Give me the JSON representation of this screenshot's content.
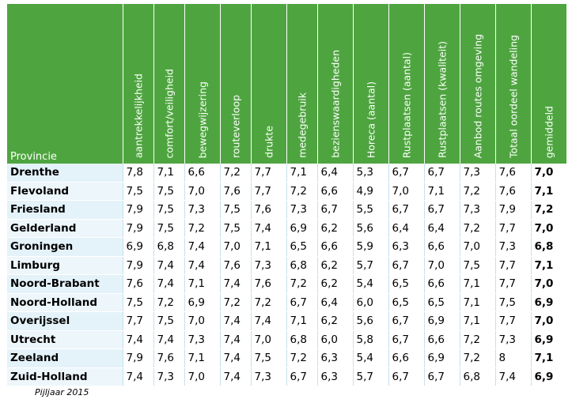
{
  "header": {
    "province": "Provincie",
    "columns": [
      "aantrekkelijkheid",
      "comfort/veiligheid",
      "bewegwijzering",
      "routeverloop",
      "drukte",
      "medegebruik",
      "bezienswaardigheden",
      "Horeca (aantal)",
      "Rustplaatsen (aantal)",
      "Rustplaatsen (kwaliteit)",
      "Aanbod routes omgeving",
      "Totaal oordeel wandeling",
      "gemiddeld"
    ]
  },
  "rows": [
    {
      "name": "Drenthe",
      "values": [
        "7,8",
        "7,1",
        "6,6",
        "7,2",
        "7,7",
        "7,1",
        "6,4",
        "5,3",
        "6,7",
        "6,7",
        "7,3",
        "7,6",
        "7,0"
      ]
    },
    {
      "name": "Flevoland",
      "values": [
        "7,5",
        "7,5",
        "7,0",
        "7,6",
        "7,7",
        "7,2",
        "6,6",
        "4,9",
        "7,0",
        "7,1",
        "7,2",
        "7,6",
        "7,1"
      ]
    },
    {
      "name": "Friesland",
      "values": [
        "7,9",
        "7,5",
        "7,3",
        "7,5",
        "7,6",
        "7,3",
        "6,7",
        "5,5",
        "6,7",
        "6,7",
        "7,3",
        "7,9",
        "7,2"
      ]
    },
    {
      "name": "Gelderland",
      "values": [
        "7,9",
        "7,5",
        "7,2",
        "7,5",
        "7,4",
        "6,9",
        "6,2",
        "5,6",
        "6,4",
        "6,4",
        "7,2",
        "7,7",
        "7,0"
      ]
    },
    {
      "name": "Groningen",
      "values": [
        "6,9",
        "6,8",
        "7,4",
        "7,0",
        "7,1",
        "6,5",
        "6,6",
        "5,9",
        "6,3",
        "6,6",
        "7,0",
        "7,3",
        "6,8"
      ]
    },
    {
      "name": "Limburg",
      "values": [
        "7,9",
        "7,4",
        "7,4",
        "7,6",
        "7,3",
        "6,8",
        "6,2",
        "5,7",
        "6,7",
        "7,0",
        "7,5",
        "7,7",
        "7,1"
      ]
    },
    {
      "name": "Noord-Brabant",
      "values": [
        "7,6",
        "7,4",
        "7,1",
        "7,4",
        "7,6",
        "7,2",
        "6,2",
        "5,4",
        "6,5",
        "6,6",
        "7,1",
        "7,7",
        "7,0"
      ]
    },
    {
      "name": "Noord-Holland",
      "values": [
        "7,5",
        "7,2",
        "6,9",
        "7,2",
        "7,2",
        "6,7",
        "6,4",
        "6,0",
        "6,5",
        "6,5",
        "7,1",
        "7,5",
        "6,9"
      ]
    },
    {
      "name": "Overijssel",
      "values": [
        "7,7",
        "7,5",
        "7,0",
        "7,4",
        "7,4",
        "7,1",
        "6,2",
        "5,6",
        "6,7",
        "6,9",
        "7,1",
        "7,7",
        "7,0"
      ]
    },
    {
      "name": "Utrecht",
      "values": [
        "7,4",
        "7,4",
        "7,3",
        "7,4",
        "7,0",
        "6,8",
        "6,0",
        "5,8",
        "6,7",
        "6,6",
        "7,2",
        "7,3",
        "6,9"
      ]
    },
    {
      "name": "Zeeland",
      "values": [
        "7,9",
        "7,6",
        "7,1",
        "7,4",
        "7,5",
        "7,2",
        "6,3",
        "5,4",
        "6,6",
        "6,9",
        "7,2",
        "8",
        "7,1"
      ]
    },
    {
      "name": "Zuid-Holland",
      "values": [
        "7,4",
        "7,3",
        "7,0",
        "7,4",
        "7,3",
        "6,7",
        "6,3",
        "5,7",
        "6,7",
        "6,7",
        "6,8",
        "7,4",
        "6,9"
      ]
    }
  ],
  "caption": "Pijljaar 2015"
}
